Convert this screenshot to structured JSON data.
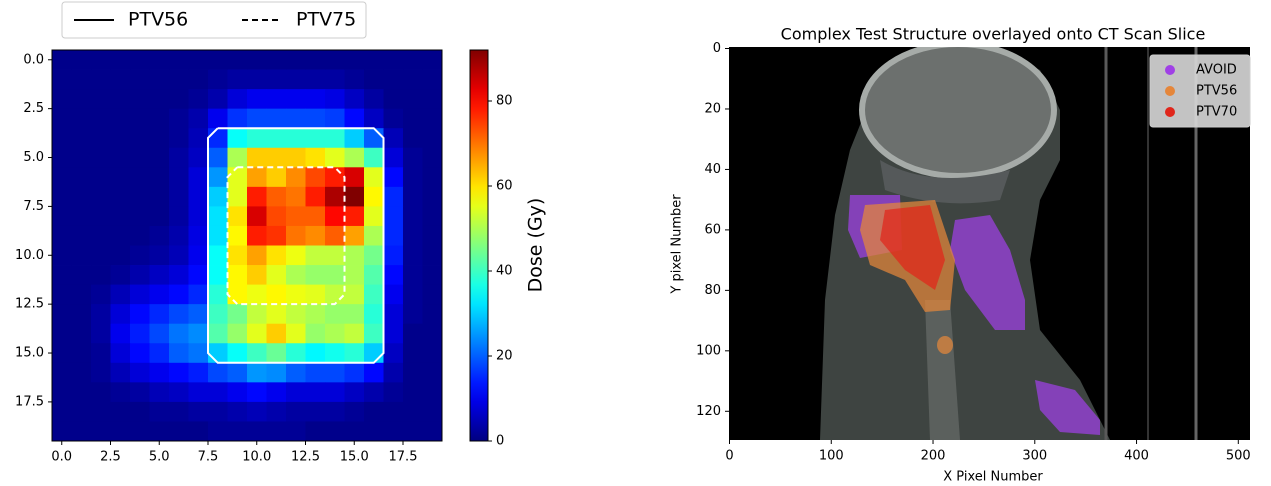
{
  "chart_data": [
    {
      "type": "heatmap",
      "colormap": "jet",
      "values": [
        [
          1,
          1,
          1,
          1,
          1,
          1,
          1,
          1,
          1,
          1,
          1,
          1,
          1,
          1,
          1,
          1,
          1,
          1,
          1,
          1
        ],
        [
          1,
          1,
          1,
          1,
          1,
          1,
          1,
          1,
          2,
          3,
          3,
          3,
          3,
          3,
          3,
          2,
          1,
          1,
          1,
          1
        ],
        [
          1,
          1,
          1,
          1,
          1,
          1,
          1,
          2,
          4,
          8,
          10,
          10,
          10,
          10,
          9,
          6,
          3,
          1,
          1,
          1
        ],
        [
          1,
          1,
          1,
          1,
          1,
          1,
          2,
          4,
          10,
          16,
          18,
          18,
          18,
          18,
          17,
          12,
          6,
          2,
          1,
          1
        ],
        [
          1,
          1,
          1,
          1,
          1,
          1,
          2,
          5,
          15,
          35,
          38,
          38,
          38,
          38,
          38,
          30,
          20,
          5,
          1,
          1
        ],
        [
          1,
          1,
          1,
          1,
          1,
          1,
          3,
          6,
          20,
          50,
          62,
          62,
          62,
          60,
          55,
          50,
          40,
          8,
          2,
          1
        ],
        [
          1,
          1,
          1,
          1,
          1,
          1,
          3,
          8,
          25,
          55,
          66,
          62,
          68,
          74,
          78,
          84,
          55,
          12,
          2,
          1
        ],
        [
          1,
          1,
          1,
          1,
          1,
          1,
          3,
          8,
          30,
          55,
          78,
          72,
          70,
          78,
          88,
          92,
          58,
          15,
          2,
          1
        ],
        [
          1,
          1,
          1,
          1,
          1,
          1,
          3,
          8,
          32,
          60,
          84,
          74,
          72,
          72,
          80,
          78,
          55,
          15,
          2,
          1
        ],
        [
          1,
          1,
          1,
          1,
          1,
          2,
          4,
          9,
          32,
          58,
          78,
          76,
          70,
          68,
          72,
          66,
          50,
          15,
          2,
          1
        ],
        [
          1,
          1,
          1,
          1,
          2,
          3,
          5,
          10,
          35,
          60,
          66,
          60,
          56,
          52,
          52,
          50,
          45,
          14,
          2,
          1
        ],
        [
          1,
          1,
          1,
          2,
          4,
          6,
          8,
          12,
          35,
          58,
          62,
          55,
          50,
          48,
          48,
          50,
          42,
          12,
          2,
          1
        ],
        [
          1,
          1,
          2,
          5,
          8,
          10,
          12,
          15,
          38,
          58,
          56,
          58,
          56,
          55,
          52,
          52,
          40,
          10,
          2,
          1
        ],
        [
          1,
          1,
          3,
          8,
          12,
          15,
          18,
          20,
          40,
          45,
          52,
          55,
          52,
          50,
          48,
          48,
          38,
          8,
          2,
          1
        ],
        [
          1,
          1,
          3,
          10,
          14,
          18,
          22,
          24,
          42,
          48,
          55,
          62,
          55,
          48,
          50,
          52,
          40,
          8,
          1,
          1
        ],
        [
          1,
          1,
          2,
          8,
          12,
          15,
          20,
          22,
          30,
          35,
          40,
          44,
          38,
          34,
          36,
          38,
          30,
          6,
          1,
          1
        ],
        [
          1,
          1,
          2,
          5,
          8,
          10,
          12,
          14,
          18,
          20,
          25,
          24,
          20,
          18,
          18,
          16,
          12,
          4,
          1,
          1
        ],
        [
          1,
          1,
          1,
          2,
          3,
          5,
          6,
          8,
          8,
          10,
          12,
          10,
          8,
          8,
          8,
          6,
          4,
          2,
          1,
          1
        ],
        [
          1,
          1,
          1,
          1,
          1,
          2,
          2,
          3,
          3,
          4,
          5,
          4,
          3,
          3,
          3,
          2,
          1,
          1,
          1,
          1
        ],
        [
          1,
          1,
          1,
          1,
          1,
          1,
          1,
          1,
          2,
          2,
          2,
          2,
          2,
          1,
          1,
          1,
          1,
          1,
          1,
          1
        ]
      ],
      "xlim": [
        -0.5,
        19.5
      ],
      "ylim": [
        19.5,
        -0.5
      ],
      "xticks": [
        {
          "value": 0,
          "label": "0.0"
        },
        2.5,
        {
          "value": 5,
          "label": "5.0"
        },
        7.5,
        {
          "value": 10,
          "label": "10.0"
        },
        12.5,
        {
          "value": 15,
          "label": "15.0"
        },
        17.5
      ],
      "yticks": [
        {
          "value": 0,
          "label": "0.0"
        },
        2.5,
        {
          "value": 5,
          "label": "5.0"
        },
        7.5,
        {
          "value": 10,
          "label": "10.0"
        },
        12.5,
        {
          "value": 15,
          "label": "15.0"
        },
        17.5
      ],
      "colorbar": {
        "label": "Dose (Gy)",
        "lim": [
          0,
          92
        ],
        "ticks": [
          0,
          20,
          40,
          60,
          80
        ]
      },
      "series": [
        {
          "name": "PTV56",
          "color": "#ffffff",
          "style": "solid",
          "x": [
            8,
            16,
            16.5,
            16.5,
            16,
            8,
            7.5,
            7.5,
            8
          ],
          "y": [
            3.5,
            3.5,
            4,
            15,
            15.5,
            15.5,
            15,
            4,
            3.5
          ]
        },
        {
          "name": "PTV75",
          "color": "#ffffff",
          "style": "dashed",
          "x": [
            9,
            14,
            14.5,
            14.5,
            14,
            9,
            8.5,
            8.5,
            9
          ],
          "y": [
            5.5,
            5.5,
            6,
            12,
            12.5,
            12.5,
            12,
            6,
            5.5
          ]
        }
      ]
    },
    {
      "type": "image-overlay",
      "title": "Complex Test Structure overlayed onto CT Scan Slice",
      "x_label": "X Pixel Number",
      "y_label": "Y pixel Number",
      "xlim": [
        -0.5,
        511.5
      ],
      "ylim": [
        129.5,
        -0.5
      ],
      "xticks": [
        0,
        100,
        200,
        300,
        400,
        500
      ],
      "yticks": [
        0,
        20,
        40,
        60,
        80,
        100,
        120
      ],
      "legend": "upper right",
      "series": [
        {
          "name": "AVOID",
          "color": "#a040e6"
        },
        {
          "name": "PTV56",
          "color": "#e5863a"
        },
        {
          "name": "PTV70",
          "color": "#e0261b"
        }
      ]
    }
  ]
}
